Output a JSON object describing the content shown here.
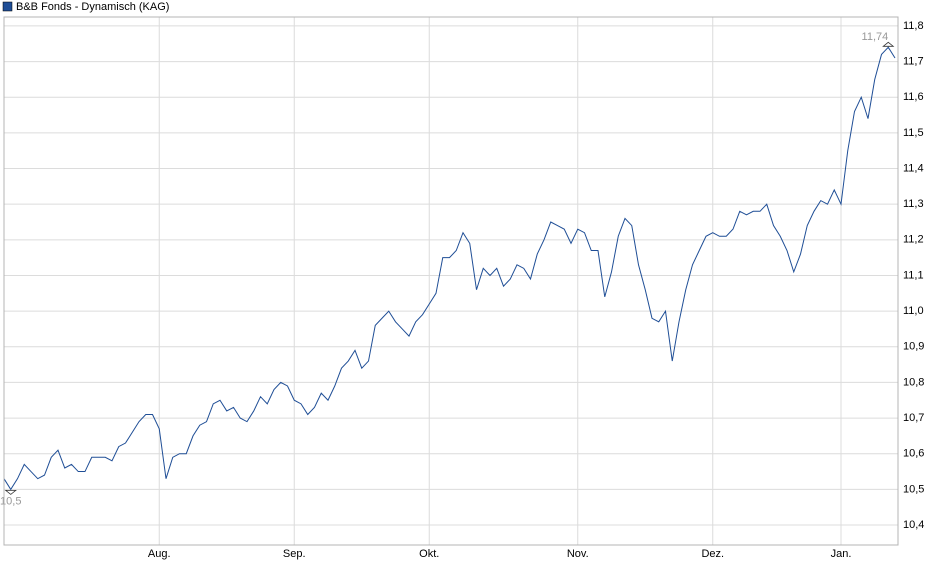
{
  "chart_data": {
    "type": "line",
    "categories": [
      null,
      null,
      null,
      null,
      null,
      null,
      null,
      null,
      null,
      null,
      null,
      null,
      null,
      null,
      null,
      null,
      null,
      null,
      null,
      null,
      null,
      null,
      null,
      "Aug.",
      null,
      null,
      null,
      null,
      null,
      null,
      null,
      null,
      null,
      null,
      null,
      null,
      null,
      null,
      null,
      null,
      null,
      null,
      null,
      "Sep.",
      null,
      null,
      null,
      null,
      null,
      null,
      null,
      null,
      null,
      null,
      null,
      null,
      null,
      null,
      null,
      null,
      null,
      null,
      null,
      "Okt.",
      null,
      null,
      null,
      null,
      null,
      null,
      null,
      null,
      null,
      null,
      null,
      null,
      null,
      null,
      null,
      null,
      null,
      null,
      null,
      null,
      null,
      "Nov.",
      null,
      null,
      null,
      null,
      null,
      null,
      null,
      null,
      null,
      null,
      null,
      null,
      null,
      null,
      null,
      null,
      null,
      null,
      null,
      "Dez.",
      null,
      null,
      null,
      null,
      null,
      null,
      null,
      null,
      null,
      null,
      null,
      null,
      null,
      null,
      null,
      null,
      null,
      null,
      "Jan.",
      null,
      null,
      null,
      null,
      null,
      null,
      null,
      null
    ],
    "series": [
      {
        "name": "B&B Fonds - Dynamisch (KAG)",
        "color": "#1f4e96",
        "values": [
          10.53,
          10.5,
          10.53,
          10.57,
          10.55,
          10.53,
          10.54,
          10.59,
          10.61,
          10.56,
          10.57,
          10.55,
          10.55,
          10.59,
          10.59,
          10.59,
          10.58,
          10.62,
          10.63,
          10.66,
          10.69,
          10.71,
          10.71,
          10.67,
          10.53,
          10.59,
          10.6,
          10.6,
          10.65,
          10.68,
          10.69,
          10.74,
          10.75,
          10.72,
          10.73,
          10.7,
          10.69,
          10.72,
          10.76,
          10.74,
          10.78,
          10.8,
          10.79,
          10.75,
          10.74,
          10.71,
          10.73,
          10.77,
          10.75,
          10.79,
          10.84,
          10.86,
          10.89,
          10.84,
          10.86,
          10.96,
          10.98,
          11.0,
          10.97,
          10.95,
          10.93,
          10.97,
          10.99,
          11.02,
          11.05,
          11.15,
          11.15,
          11.17,
          11.22,
          11.19,
          11.06,
          11.12,
          11.1,
          11.12,
          11.07,
          11.09,
          11.13,
          11.12,
          11.09,
          11.16,
          11.2,
          11.25,
          11.24,
          11.23,
          11.19,
          11.23,
          11.22,
          11.17,
          11.17,
          11.04,
          11.11,
          11.21,
          11.26,
          11.24,
          11.13,
          11.06,
          10.98,
          10.97,
          11.0,
          10.86,
          10.97,
          11.06,
          11.13,
          11.17,
          11.21,
          11.22,
          11.21,
          11.21,
          11.23,
          11.28,
          11.27,
          11.28,
          11.28,
          11.3,
          11.24,
          11.21,
          11.17,
          11.11,
          11.16,
          11.24,
          11.28,
          11.31,
          11.3,
          11.34,
          11.3,
          11.45,
          11.56,
          11.6,
          11.54,
          11.65,
          11.72,
          11.74,
          11.71
        ],
        "value_labels": [
          null,
          "10,5",
          null,
          null,
          null,
          null,
          null,
          null,
          null,
          null,
          null,
          null,
          null,
          null,
          null,
          null,
          null,
          null,
          null,
          null,
          null,
          null,
          null,
          null,
          null,
          null,
          null,
          null,
          null,
          null,
          null,
          null,
          null,
          null,
          null,
          null,
          null,
          null,
          null,
          null,
          null,
          null,
          null,
          null,
          null,
          null,
          null,
          null,
          null,
          null,
          null,
          null,
          null,
          null,
          null,
          null,
          null,
          null,
          null,
          null,
          null,
          null,
          null,
          null,
          null,
          null,
          null,
          null,
          null,
          null,
          null,
          null,
          null,
          null,
          null,
          null,
          null,
          null,
          null,
          null,
          null,
          null,
          null,
          null,
          null,
          null,
          null,
          null,
          null,
          null,
          null,
          null,
          null,
          null,
          null,
          null,
          null,
          null,
          null,
          null,
          null,
          null,
          null,
          null,
          null,
          null,
          null,
          null,
          null,
          null,
          null,
          null,
          null,
          null,
          null,
          null,
          null,
          null,
          null,
          null,
          null,
          null,
          null,
          null,
          null,
          null,
          null,
          null,
          null,
          null,
          null,
          "11,74",
          null
        ]
      }
    ],
    "ylim": [
      10.344,
      11.825
    ],
    "yticks": [
      {
        "value": 10.4,
        "label": "10,4"
      },
      {
        "value": 10.5,
        "label": "10,5"
      },
      {
        "value": 10.6,
        "label": "10,6"
      },
      {
        "value": 10.7,
        "label": "10,7"
      },
      {
        "value": 10.8,
        "label": "10,8"
      },
      {
        "value": 10.9,
        "label": "10,9"
      },
      {
        "value": 11.0,
        "label": "11,0"
      },
      {
        "value": 11.1,
        "label": "11,1"
      },
      {
        "value": 11.2,
        "label": "11,2"
      },
      {
        "value": 11.3,
        "label": "11,3"
      },
      {
        "value": 11.4,
        "label": "11,4"
      },
      {
        "value": 11.5,
        "label": "11,5"
      },
      {
        "value": 11.6,
        "label": "11,6"
      },
      {
        "value": 11.7,
        "label": "11,7"
      },
      {
        "value": 11.8,
        "label": "11,8"
      }
    ],
    "grid": true
  }
}
